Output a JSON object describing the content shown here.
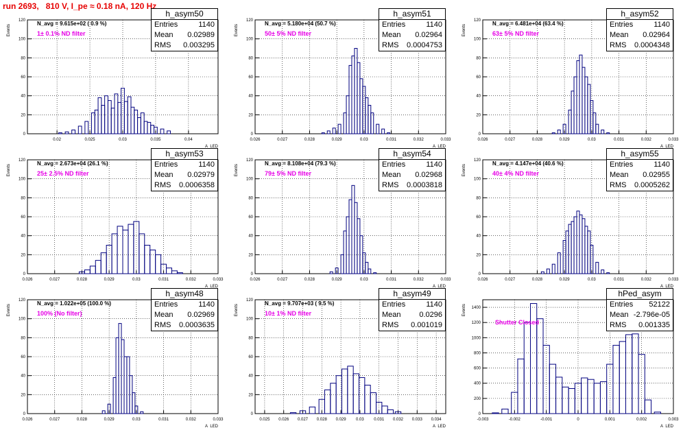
{
  "page": {
    "title": "run 2693,   810 V, I_pe ≈ 0.18 nA, 120 Hz",
    "colors": {
      "title": "#e60000",
      "histogram": "#00007f",
      "filter_label": "#e600e6",
      "grid": "#000000"
    }
  },
  "chart_data": [
    {
      "type": "bar",
      "name": "h_asym50",
      "ylabel": "Events",
      "xlabel": "A_LED",
      "xlim": [
        0.0155,
        0.0445
      ],
      "ylim": [
        0,
        120
      ],
      "xticks": [
        "0.02",
        "0.025",
        "0.03",
        "0.035",
        "0.04"
      ],
      "yticks": [
        "0",
        "20",
        "40",
        "60",
        "80",
        "100",
        "120"
      ],
      "navg": "N_avg = 9.615e+02 ( 0.9 %)",
      "filter": "1± 0.1% ND filter",
      "stats": {
        "entries": "1140",
        "mean": "0.02989",
        "rms": "0.003295"
      },
      "x": [
        0.0205,
        0.0215,
        0.0225,
        0.0235,
        0.0245,
        0.0255,
        0.026,
        0.0265,
        0.027,
        0.0275,
        0.028,
        0.0285,
        0.029,
        0.0295,
        0.03,
        0.0305,
        0.031,
        0.0315,
        0.032,
        0.0325,
        0.033,
        0.0335,
        0.034,
        0.0345,
        0.035,
        0.036,
        0.037
      ],
      "values": [
        1,
        2,
        4,
        8,
        13,
        22,
        25,
        38,
        30,
        40,
        35,
        27,
        42,
        33,
        48,
        34,
        39,
        28,
        25,
        17,
        22,
        13,
        12,
        9,
        7,
        5,
        3
      ],
      "grid": true
    },
    {
      "type": "bar",
      "name": "h_asym51",
      "ylabel": "Events",
      "xlabel": "A_LED",
      "xlim": [
        0.026,
        0.033
      ],
      "ylim": [
        0,
        120
      ],
      "xticks": [
        "0.026",
        "0.027",
        "0.028",
        "0.029",
        "0.03",
        "0.031",
        "0.032",
        "0.033"
      ],
      "yticks": [
        "0",
        "20",
        "40",
        "60",
        "80",
        "100",
        "120"
      ],
      "navg": "N_avg = 5.180e+04 (50.7 %)",
      "filter": "50± 5% ND filter",
      "stats": {
        "entries": "1140",
        "mean": "0.02964",
        "rms": "0.0004753"
      },
      "x": [
        0.0285,
        0.0287,
        0.0289,
        0.0291,
        0.0293,
        0.0294,
        0.0295,
        0.0296,
        0.0297,
        0.0298,
        0.0299,
        0.03,
        0.0301,
        0.0302,
        0.0303,
        0.0305,
        0.0307,
        0.0309
      ],
      "values": [
        1,
        3,
        6,
        10,
        22,
        40,
        72,
        82,
        90,
        75,
        58,
        50,
        38,
        30,
        22,
        10,
        5,
        1
      ],
      "grid": true
    },
    {
      "type": "bar",
      "name": "h_asym52",
      "ylabel": "Events",
      "xlabel": "A_LED",
      "xlim": [
        0.026,
        0.033
      ],
      "ylim": [
        0,
        120
      ],
      "xticks": [
        "0.026",
        "0.027",
        "0.028",
        "0.029",
        "0.03",
        "0.031",
        "0.032",
        "0.033"
      ],
      "yticks": [
        "0",
        "20",
        "40",
        "60",
        "80",
        "100",
        "120"
      ],
      "navg": "N_avg = 6.481e+04 (63.4 %)",
      "filter": "63± 5% ND filter",
      "stats": {
        "entries": "1140",
        "mean": "0.02964",
        "rms": "0.0004348"
      },
      "x": [
        0.0286,
        0.0288,
        0.029,
        0.0292,
        0.0293,
        0.0294,
        0.0295,
        0.0296,
        0.0297,
        0.0298,
        0.0299,
        0.03,
        0.0301,
        0.0302,
        0.0304,
        0.0306
      ],
      "values": [
        1,
        4,
        10,
        25,
        45,
        60,
        77,
        83,
        70,
        60,
        52,
        35,
        22,
        10,
        4,
        1
      ],
      "grid": true
    },
    {
      "type": "bar",
      "name": "h_asym53",
      "ylabel": "Events",
      "xlabel": "A_LED",
      "xlim": [
        0.026,
        0.033
      ],
      "ylim": [
        0,
        120
      ],
      "xticks": [
        "0.026",
        "0.027",
        "0.028",
        "0.029",
        "0.03",
        "0.031",
        "0.032",
        "0.033"
      ],
      "yticks": [
        "0",
        "20",
        "40",
        "60",
        "80",
        "100",
        "120"
      ],
      "navg": "N_avg = 2.673e+04 (26.1 %)",
      "filter": "25± 2.5% ND filter",
      "stats": {
        "entries": "1140",
        "mean": "0.02979",
        "rms": "0.0006358"
      },
      "x": [
        0.028,
        0.0282,
        0.0284,
        0.0286,
        0.0288,
        0.029,
        0.0292,
        0.0294,
        0.0296,
        0.0298,
        0.03,
        0.0302,
        0.0304,
        0.0306,
        0.0308,
        0.031,
        0.0312,
        0.0314,
        0.0316
      ],
      "values": [
        2,
        4,
        8,
        14,
        22,
        30,
        42,
        50,
        46,
        52,
        55,
        42,
        30,
        25,
        20,
        10,
        6,
        3,
        1
      ],
      "grid": true
    },
    {
      "type": "bar",
      "name": "h_asym54",
      "ylabel": "Events",
      "xlabel": "A_LED",
      "xlim": [
        0.026,
        0.033
      ],
      "ylim": [
        0,
        120
      ],
      "xticks": [
        "0.026",
        "0.027",
        "0.028",
        "0.029",
        "0.03",
        "0.031",
        "0.032",
        "0.033"
      ],
      "yticks": [
        "0",
        "20",
        "40",
        "60",
        "80",
        "100",
        "120"
      ],
      "navg": "N_avg = 8.108e+04 (79.3 %)",
      "filter": "79± 5% ND filter",
      "stats": {
        "entries": "1140",
        "mean": "0.02968",
        "rms": "0.0003818"
      },
      "x": [
        0.0288,
        0.029,
        0.0292,
        0.0293,
        0.0294,
        0.0295,
        0.0296,
        0.0297,
        0.0298,
        0.0299,
        0.03,
        0.0301,
        0.0302,
        0.0304
      ],
      "values": [
        2,
        6,
        20,
        45,
        60,
        78,
        93,
        75,
        58,
        40,
        22,
        12,
        5,
        1
      ],
      "grid": true
    },
    {
      "type": "bar",
      "name": "h_asym55",
      "ylabel": "Events",
      "xlabel": "A_LED",
      "xlim": [
        0.026,
        0.033
      ],
      "ylim": [
        0,
        120
      ],
      "xticks": [
        "0.026",
        "0.027",
        "0.028",
        "0.029",
        "0.03",
        "0.031",
        "0.032",
        "0.033"
      ],
      "yticks": [
        "0",
        "20",
        "40",
        "60",
        "80",
        "100",
        "120"
      ],
      "navg": "N_avg = 4.147e+04 (40.6 %)",
      "filter": "40± 4% ND filter",
      "stats": {
        "entries": "1140",
        "mean": "0.02955",
        "rms": "0.0005262"
      },
      "x": [
        0.0282,
        0.0284,
        0.0286,
        0.0288,
        0.029,
        0.0291,
        0.0292,
        0.0293,
        0.0294,
        0.0295,
        0.0296,
        0.0297,
        0.0298,
        0.0299,
        0.03,
        0.0302,
        0.0304,
        0.0306
      ],
      "values": [
        2,
        5,
        10,
        22,
        35,
        45,
        52,
        55,
        60,
        66,
        62,
        58,
        50,
        45,
        30,
        12,
        4,
        1
      ],
      "grid": true
    },
    {
      "type": "bar",
      "name": "h_asym48",
      "ylabel": "Events",
      "xlabel": "A_LED",
      "xlim": [
        0.026,
        0.033
      ],
      "ylim": [
        0,
        120
      ],
      "xticks": [
        "0.026",
        "0.027",
        "0.028",
        "0.029",
        "0.03",
        "0.031",
        "0.032",
        "0.033"
      ],
      "yticks": [
        "0",
        "20",
        "40",
        "60",
        "80",
        "100",
        "120"
      ],
      "navg": "N_avg = 1.022e+05 (100.0 %)",
      "filter": "100% (No filter)",
      "stats": {
        "entries": "1140",
        "mean": "0.02969",
        "rms": "0.0003635"
      },
      "x": [
        0.0288,
        0.029,
        0.0292,
        0.0293,
        0.0294,
        0.0295,
        0.0296,
        0.0297,
        0.0298,
        0.0299,
        0.03,
        0.0302
      ],
      "values": [
        3,
        10,
        38,
        80,
        95,
        78,
        60,
        60,
        40,
        22,
        8,
        2
      ],
      "grid": true
    },
    {
      "type": "bar",
      "name": "h_asym49",
      "ylabel": "Events",
      "xlabel": "A_LED",
      "xlim": [
        0.0245,
        0.0345
      ],
      "ylim": [
        0,
        120
      ],
      "xticks": [
        "0.025",
        "0.026",
        "0.027",
        "0.028",
        "0.029",
        "0.03",
        "0.031",
        "0.032",
        "0.033",
        "0.034"
      ],
      "yticks": [
        "0",
        "20",
        "40",
        "60",
        "80",
        "100",
        "120"
      ],
      "navg": "N_avg = 9.707e+03 ( 9.5 %)",
      "filter": "10± 1% ND filter",
      "stats": {
        "entries": "1140",
        "mean": "0.0296",
        "rms": "0.001019"
      },
      "x": [
        0.0265,
        0.027,
        0.0275,
        0.028,
        0.0283,
        0.0286,
        0.0289,
        0.0292,
        0.0295,
        0.0298,
        0.0301,
        0.0304,
        0.0307,
        0.031,
        0.0313,
        0.0316,
        0.032
      ],
      "values": [
        1,
        3,
        7,
        15,
        25,
        32,
        40,
        47,
        50,
        42,
        38,
        30,
        22,
        12,
        8,
        4,
        2
      ],
      "grid": true
    },
    {
      "type": "bar",
      "name": "hPed_asym",
      "ylabel": "Events",
      "xlabel": "A_LED",
      "xlim": [
        -0.003,
        0.003
      ],
      "ylim": [
        0,
        1500
      ],
      "xticks": [
        "-0.003",
        "-0.002",
        "-0.001",
        "0",
        "0.001",
        "0.002",
        "0.003"
      ],
      "yticks": [
        "0",
        "200",
        "400",
        "600",
        "800",
        "1000",
        "1200",
        "1400"
      ],
      "navg": "",
      "filter": "Shutter Closed",
      "stats": {
        "entries": "52122",
        "mean": "-2.796e-05",
        "rms": "0.001335"
      },
      "x": [
        -0.0026,
        -0.0023,
        -0.002,
        -0.0018,
        -0.0016,
        -0.0014,
        -0.0012,
        -0.001,
        -0.0008,
        -0.0006,
        -0.0004,
        -0.0002,
        0,
        0.0002,
        0.0004,
        0.0006,
        0.0008,
        0.001,
        0.0012,
        0.0014,
        0.0016,
        0.0018,
        0.002,
        0.0022,
        0.0025
      ],
      "values": [
        10,
        60,
        280,
        720,
        1200,
        1450,
        1250,
        900,
        650,
        480,
        350,
        330,
        400,
        470,
        450,
        400,
        420,
        650,
        900,
        950,
        1040,
        1050,
        780,
        180,
        20
      ],
      "grid": true
    }
  ]
}
